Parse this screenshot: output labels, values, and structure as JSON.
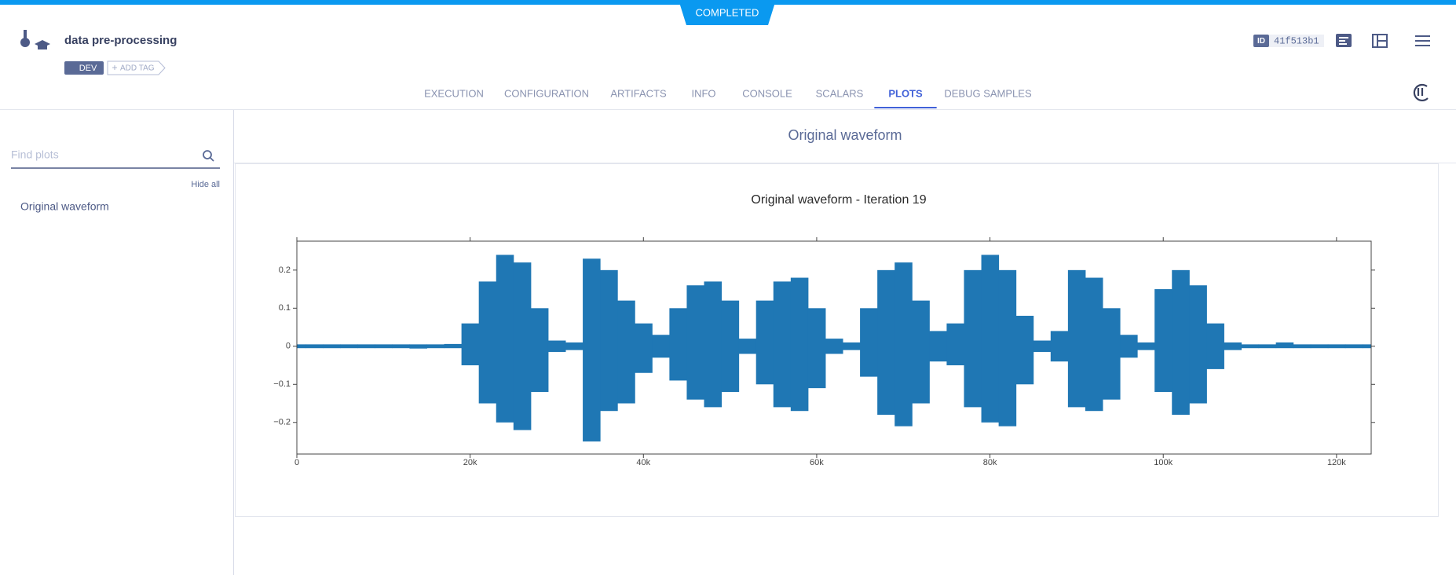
{
  "status": "COMPLETED",
  "header": {
    "title": "data pre-processing",
    "tags": [
      "DEV"
    ],
    "add_tag": "ADD TAG",
    "id_label": "ID",
    "id": "41f513b1"
  },
  "tabs": [
    "EXECUTION",
    "CONFIGURATION",
    "ARTIFACTS",
    "INFO",
    "CONSOLE",
    "SCALARS",
    "PLOTS",
    "DEBUG SAMPLES"
  ],
  "active_tab": 6,
  "sidebar": {
    "search_placeholder": "Find plots",
    "hide_all": "Hide all",
    "items": [
      "Original waveform"
    ]
  },
  "panel": {
    "title": "Original waveform"
  },
  "chart_data": {
    "type": "waveform",
    "title": "Original waveform - Iteration 19",
    "x": [
      0,
      2000,
      4000,
      6000,
      8000,
      10000,
      12000,
      14000,
      16000,
      18000,
      20000,
      22000,
      24000,
      26000,
      28000,
      30000,
      32000,
      34000,
      36000,
      38000,
      40000,
      42000,
      44000,
      46000,
      48000,
      50000,
      52000,
      54000,
      56000,
      58000,
      60000,
      62000,
      64000,
      66000,
      68000,
      70000,
      72000,
      74000,
      76000,
      78000,
      80000,
      82000,
      84000,
      86000,
      88000,
      90000,
      92000,
      94000,
      96000,
      98000,
      100000,
      102000,
      104000,
      106000,
      108000,
      110000,
      112000,
      114000,
      116000,
      118000,
      120000,
      122000,
      124000
    ],
    "series": [
      {
        "color": "#1f77b4",
        "values": [
          0.005,
          0.005,
          0.005,
          0.005,
          0.005,
          0.005,
          0.005,
          0.005,
          0.005,
          0.006,
          0.06,
          0.17,
          0.24,
          0.22,
          0.1,
          0.015,
          0.01,
          0.23,
          0.2,
          0.12,
          0.06,
          0.03,
          0.1,
          0.16,
          0.17,
          0.12,
          0.02,
          0.12,
          0.17,
          0.18,
          0.1,
          0.02,
          0.01,
          0.1,
          0.2,
          0.22,
          0.12,
          0.04,
          0.06,
          0.2,
          0.24,
          0.2,
          0.08,
          0.015,
          0.04,
          0.2,
          0.18,
          0.1,
          0.03,
          0.01,
          0.15,
          0.2,
          0.16,
          0.06,
          0.01,
          0.005,
          0.005,
          0.01,
          0.005,
          0.005,
          0.005,
          0.005,
          0.005
        ]
      },
      {
        "color": "#1f77b4",
        "values": [
          -0.005,
          -0.005,
          -0.005,
          -0.005,
          -0.005,
          -0.005,
          -0.005,
          -0.006,
          -0.005,
          -0.005,
          -0.05,
          -0.15,
          -0.2,
          -0.22,
          -0.12,
          -0.015,
          -0.01,
          -0.25,
          -0.17,
          -0.15,
          -0.07,
          -0.03,
          -0.09,
          -0.14,
          -0.16,
          -0.12,
          -0.02,
          -0.1,
          -0.16,
          -0.17,
          -0.11,
          -0.02,
          -0.01,
          -0.08,
          -0.18,
          -0.21,
          -0.15,
          -0.04,
          -0.05,
          -0.16,
          -0.2,
          -0.21,
          -0.1,
          -0.015,
          -0.04,
          -0.16,
          -0.17,
          -0.14,
          -0.03,
          -0.01,
          -0.12,
          -0.18,
          -0.15,
          -0.06,
          -0.01,
          -0.005,
          -0.005,
          -0.005,
          -0.005,
          -0.005,
          -0.005,
          -0.005,
          -0.005
        ]
      }
    ],
    "xlim": [
      0,
      124000
    ],
    "ylim": [
      -0.283,
      0.276
    ],
    "xticks": [
      0,
      {
        "value": 20000,
        "label": "20k"
      },
      {
        "value": 40000,
        "label": "40k"
      },
      {
        "value": 60000,
        "label": "60k"
      },
      {
        "value": 80000,
        "label": "80k"
      },
      {
        "value": 100000,
        "label": "100k"
      },
      {
        "value": 120000,
        "label": "120k"
      }
    ],
    "yticks": [
      {
        "value": -0.2,
        "label": "−0.2"
      },
      {
        "value": -0.1,
        "label": "−0.1"
      },
      0,
      0.1,
      0.2
    ]
  }
}
